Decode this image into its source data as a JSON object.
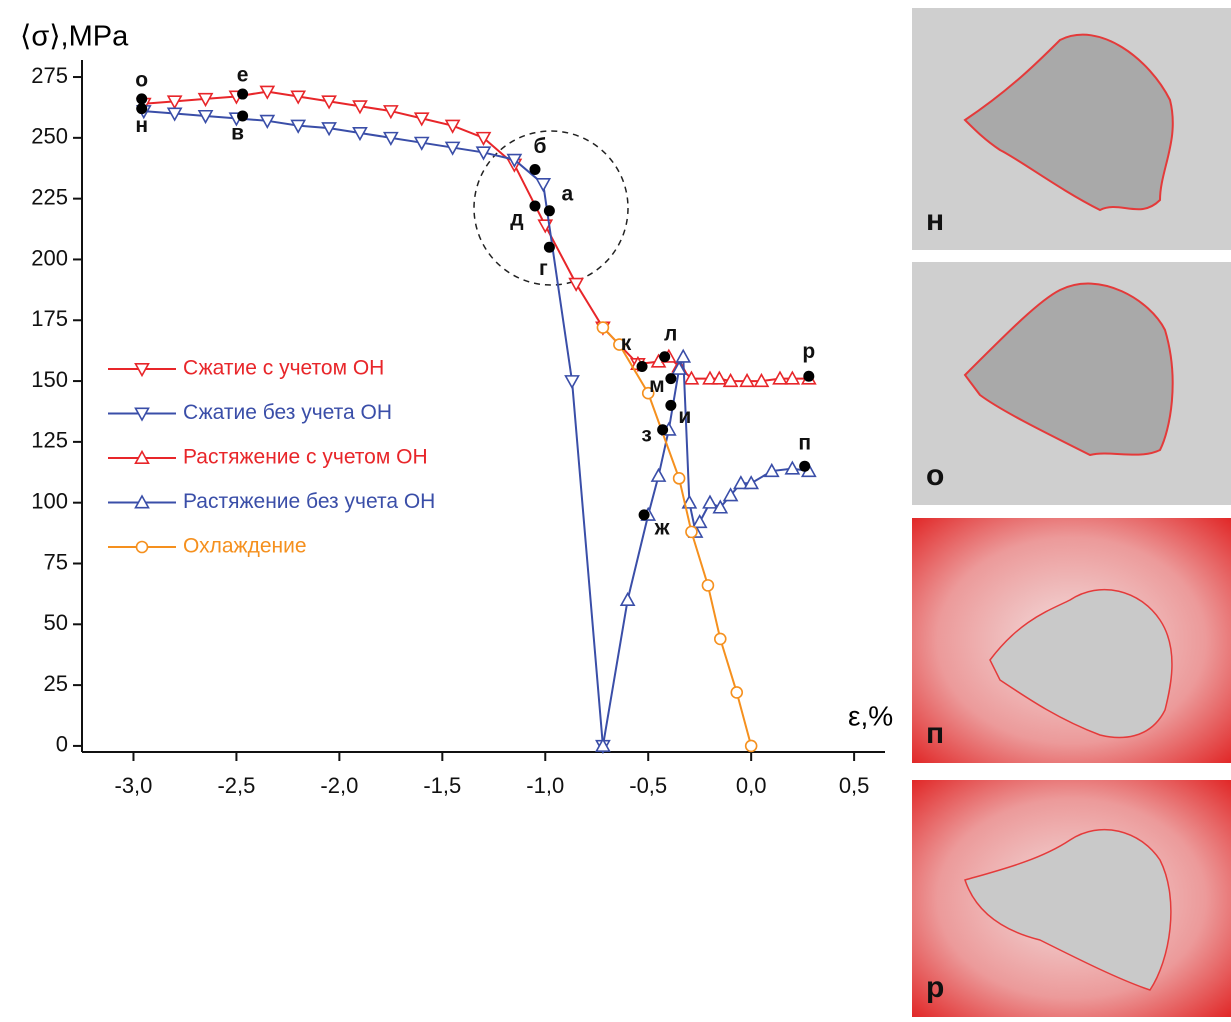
{
  "chart_data": {
    "type": "line",
    "y_label": "⟨σ⟩,MPa",
    "x_label": "ε,%",
    "xlim": [
      -3.25,
      0.65
    ],
    "ylim": [
      -2.5,
      282
    ],
    "xticks": [
      {
        "value": -3.0,
        "label": "-3,0"
      },
      {
        "value": -2.5,
        "label": "-2,5"
      },
      {
        "value": -2.0,
        "label": "-2,0"
      },
      {
        "value": -1.5,
        "label": "-1,5"
      },
      {
        "value": -1.0,
        "label": "-1,0"
      },
      {
        "value": -0.5,
        "label": "-0,5"
      },
      {
        "value": 0.0,
        "label": "0,0"
      },
      {
        "value": 0.5,
        "label": "0,5"
      }
    ],
    "yticks": [
      0,
      25,
      50,
      75,
      100,
      125,
      150,
      175,
      200,
      225,
      250,
      275
    ],
    "series": [
      {
        "name": "Сжатие с учетом ОН",
        "color": "#e8262a",
        "marker": "down",
        "x": [
          -2.95,
          -2.8,
          -2.65,
          -2.5,
          -2.35,
          -2.2,
          -2.05,
          -1.9,
          -1.75,
          -1.6,
          -1.45,
          -1.3,
          -1.15,
          -1.0,
          -0.85,
          -0.72,
          -0.55
        ],
        "values": [
          264,
          265,
          266,
          267,
          269,
          267,
          265,
          263,
          261,
          258,
          255,
          250,
          239,
          214,
          190,
          172,
          157
        ]
      },
      {
        "name": "Сжатие без учета ОН",
        "color": "#3a4ea8",
        "marker": "down",
        "x": [
          -2.95,
          -2.8,
          -2.65,
          -2.5,
          -2.35,
          -2.2,
          -2.05,
          -1.9,
          -1.75,
          -1.6,
          -1.45,
          -1.3,
          -1.15,
          -1.01,
          -0.87,
          -0.72
        ],
        "values": [
          261,
          260,
          259,
          258,
          257,
          255,
          254,
          252,
          250,
          248,
          246,
          244,
          241,
          231,
          150,
          0
        ]
      },
      {
        "name": "Растяжение с учетом ОН",
        "color": "#e8262a",
        "marker": "up",
        "x": [
          -0.55,
          -0.45,
          -0.4,
          -0.35,
          -0.29,
          -0.2,
          -0.155,
          -0.1,
          -0.02,
          0.05,
          0.14,
          0.2,
          0.28
        ],
        "values": [
          157,
          158,
          160,
          156,
          151,
          151,
          151,
          150,
          150,
          150,
          151,
          151,
          151
        ]
      },
      {
        "name": "Растяжение без учета ОН",
        "color": "#3a4ea8",
        "marker": "up",
        "x": [
          -0.72,
          -0.6,
          -0.5,
          -0.45,
          -0.4,
          -0.35,
          -0.33,
          -0.3,
          -0.27,
          -0.25,
          -0.2,
          -0.15,
          -0.1,
          -0.05,
          0.0,
          0.1,
          0.2,
          0.28
        ],
        "values": [
          0,
          60,
          95,
          111,
          130,
          155,
          160,
          100,
          88,
          92,
          100,
          98,
          103,
          108,
          108,
          113,
          114,
          113
        ]
      },
      {
        "name": "Охлаждение",
        "color": "#f5901e",
        "marker": "circle",
        "x": [
          -0.72,
          -0.64,
          -0.5,
          -0.35,
          -0.29,
          -0.21,
          -0.15,
          -0.07,
          0.0
        ],
        "values": [
          172,
          165,
          145,
          110,
          88,
          66,
          44,
          22,
          0
        ]
      }
    ],
    "annotations": [
      {
        "label": "о",
        "x": -2.96,
        "y": 266
      },
      {
        "label": "н",
        "x": -2.96,
        "y": 262
      },
      {
        "label": "е",
        "x": -2.47,
        "y": 268
      },
      {
        "label": "в",
        "x": -2.47,
        "y": 259
      },
      {
        "label": "б",
        "x": -1.05,
        "y": 237
      },
      {
        "label": "а",
        "x": -0.98,
        "y": 220
      },
      {
        "label": "д",
        "x": -1.05,
        "y": 222
      },
      {
        "label": "г",
        "x": -0.98,
        "y": 205
      },
      {
        "label": "к",
        "x": -0.53,
        "y": 156
      },
      {
        "label": "л",
        "x": -0.42,
        "y": 160
      },
      {
        "label": "м",
        "x": -0.39,
        "y": 151
      },
      {
        "label": "и",
        "x": -0.39,
        "y": 140
      },
      {
        "label": "з",
        "x": -0.43,
        "y": 130
      },
      {
        "label": "ж",
        "x": -0.52,
        "y": 95
      },
      {
        "label": "п",
        "x": 0.26,
        "y": 115
      },
      {
        "label": "р",
        "x": 0.28,
        "y": 152
      }
    ],
    "panels": [
      {
        "label": "н"
      },
      {
        "label": "о"
      },
      {
        "label": "п"
      },
      {
        "label": "р"
      }
    ]
  }
}
